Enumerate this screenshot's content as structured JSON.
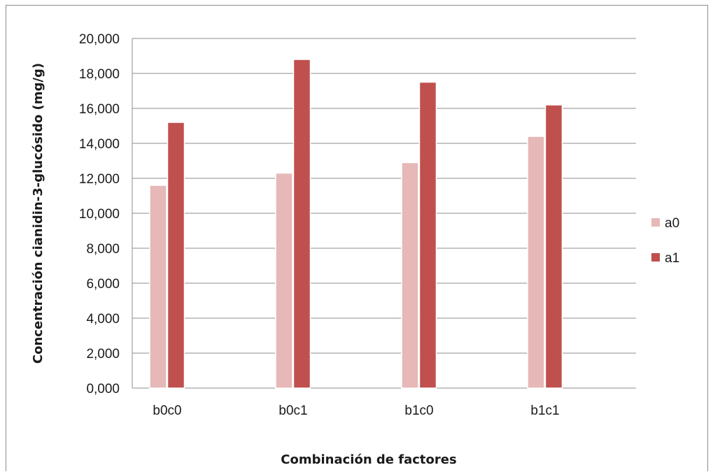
{
  "chart_data": {
    "type": "bar",
    "xlabel": "Combinación de factores",
    "ylabel": "Concentración cianidin-3-glucósido (mg/g)",
    "categories": [
      "b0c0",
      "b0c1",
      "b1c0",
      "b1c1"
    ],
    "series": [
      {
        "name": "a0",
        "color": "#e6b8b7",
        "values": [
          11.6,
          12.3,
          12.9,
          14.4
        ]
      },
      {
        "name": "a1",
        "color": "#c0504d",
        "values": [
          15.2,
          18.8,
          17.5,
          16.2
        ]
      }
    ],
    "ylim": [
      0,
      20
    ],
    "yticks": [
      "0,000",
      "2,000",
      "4,000",
      "6,000",
      "8,000",
      "10,000",
      "12,000",
      "14,000",
      "16,000",
      "18,000",
      "20,000"
    ],
    "grid": true,
    "legend": "right"
  }
}
